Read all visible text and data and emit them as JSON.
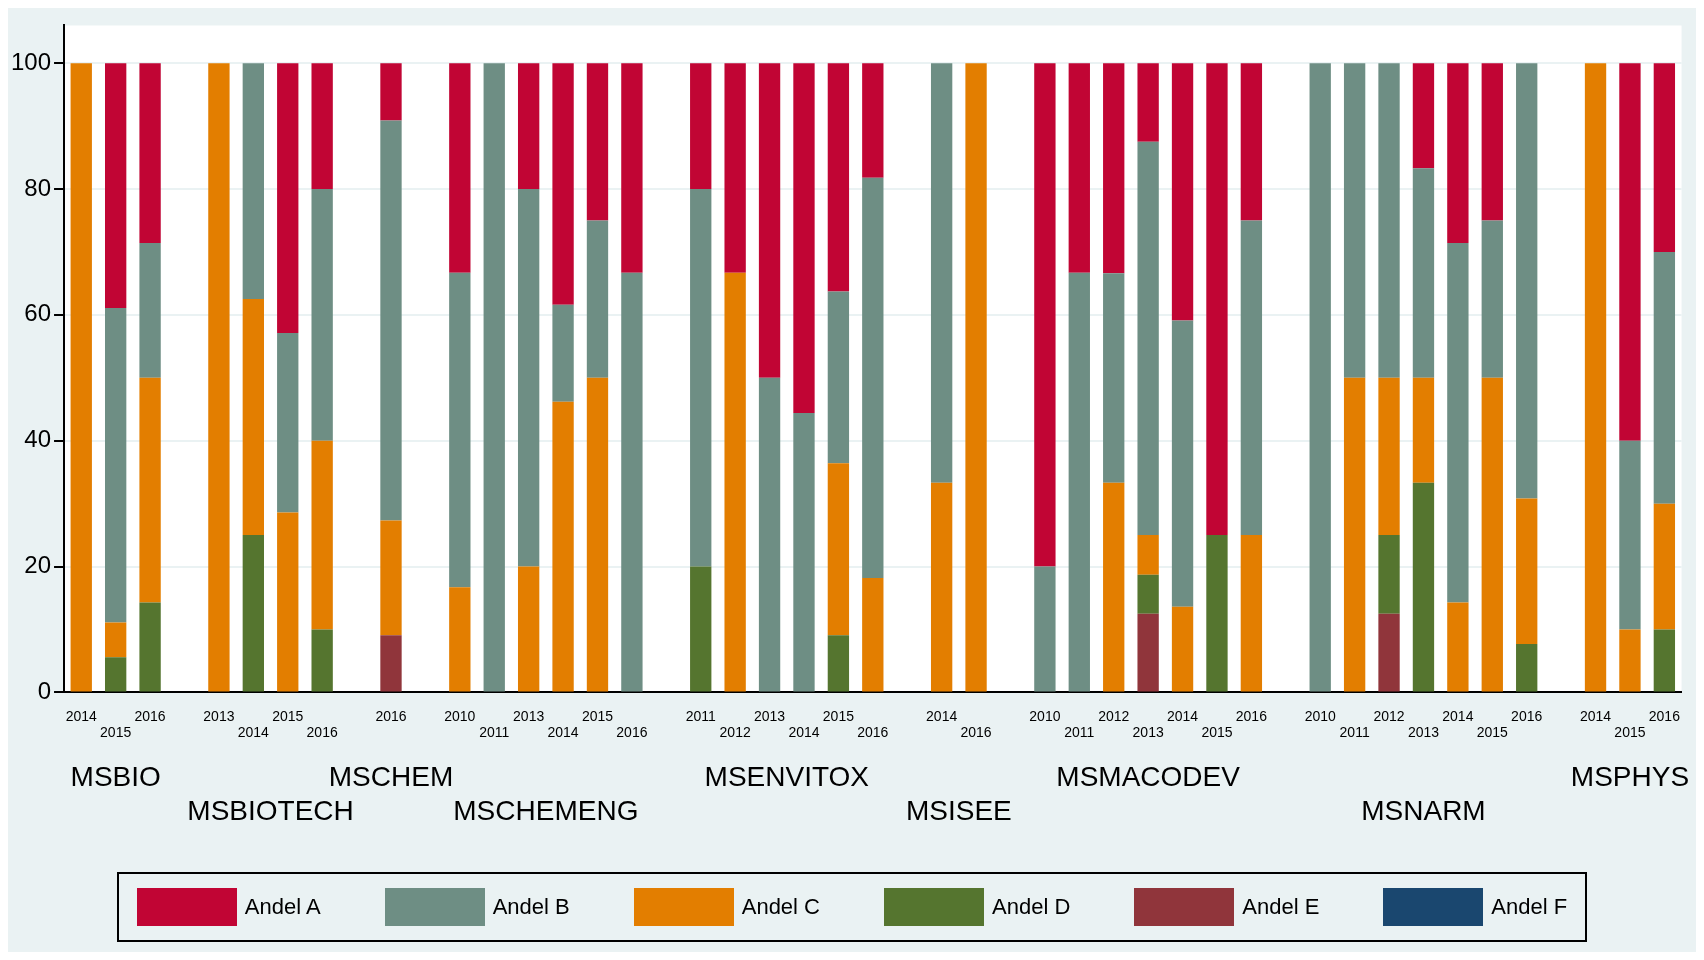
{
  "chart_data": {
    "type": "bar",
    "stacked": true,
    "grid": "y",
    "legend": "bottom",
    "categories": [
      "2014",
      "2015",
      "2016",
      null,
      "2013",
      "2014",
      "2015",
      "2016",
      null,
      "2016",
      null,
      "2010",
      "2011",
      "2013",
      "2014",
      "2015",
      "2016",
      null,
      "2011",
      "2012",
      "2013",
      "2014",
      "2015",
      "2016",
      null,
      "2014",
      "2016",
      null,
      "2010",
      "2011",
      "2012",
      "2013",
      "2014",
      "2015",
      "2016",
      null,
      "2010",
      "2011",
      "2012",
      "2013",
      "2014",
      "2015",
      "2016",
      null,
      "2014",
      "2015",
      "2016"
    ],
    "ylim": [
      0,
      106
    ],
    "yticks": [
      0,
      20,
      40,
      60,
      80,
      100
    ],
    "annotations": [
      "MSBIO",
      "MSBIOTECH",
      "MSCHEM",
      "MSCHEMENG",
      "MSENVITOX",
      "MSISEE",
      "MSMACODEV",
      "MSNARM",
      "MSPHYS"
    ],
    "series": [
      {
        "name": "Andel F",
        "color": "#1a476f",
        "values": [
          null,
          null,
          null,
          null,
          null,
          null,
          null,
          null,
          null,
          null,
          null,
          null,
          null,
          null,
          null,
          null,
          null,
          null,
          null,
          null,
          null,
          null,
          null,
          null,
          null,
          null,
          null,
          null,
          null,
          null,
          null,
          null,
          null,
          null,
          null,
          null,
          null,
          null,
          null,
          null,
          null,
          null,
          null,
          null,
          null,
          null,
          null
        ]
      },
      {
        "name": "Andel E",
        "color": "#90353b",
        "values": [
          null,
          null,
          null,
          null,
          null,
          null,
          null,
          null,
          null,
          9.1,
          null,
          null,
          null,
          null,
          null,
          null,
          null,
          null,
          null,
          null,
          null,
          null,
          null,
          null,
          null,
          null,
          null,
          null,
          null,
          null,
          null,
          12.5,
          null,
          null,
          null,
          null,
          null,
          null,
          12.5,
          null,
          null,
          null,
          null,
          null,
          null,
          null,
          null
        ]
      },
      {
        "name": "Andel D",
        "color": "#55752f",
        "values": [
          null,
          5.6,
          14.3,
          null,
          null,
          25,
          null,
          10,
          null,
          null,
          null,
          null,
          null,
          null,
          null,
          null,
          null,
          null,
          20,
          null,
          null,
          null,
          9.1,
          null,
          null,
          null,
          null,
          null,
          null,
          null,
          null,
          6.2,
          null,
          25,
          null,
          null,
          null,
          null,
          12.5,
          33.3,
          null,
          null,
          7.7,
          null,
          null,
          null,
          10
        ]
      },
      {
        "name": "Andel C",
        "color": "#e37e00",
        "values": [
          100,
          5.5,
          35.7,
          null,
          100,
          37.5,
          28.6,
          30,
          null,
          18.2,
          null,
          16.7,
          null,
          20,
          46.2,
          50,
          null,
          null,
          null,
          66.7,
          null,
          null,
          27.3,
          18.2,
          null,
          33.3,
          100,
          null,
          null,
          null,
          33.3,
          6.3,
          13.6,
          null,
          25,
          null,
          null,
          50,
          25,
          16.7,
          14.3,
          50,
          23.1,
          null,
          100,
          10,
          20
        ]
      },
      {
        "name": "Andel B",
        "color": "#6e8e84",
        "values": [
          null,
          50,
          21.4,
          null,
          null,
          37.5,
          28.5,
          40,
          null,
          63.6,
          null,
          50,
          100,
          60,
          15.4,
          25,
          66.7,
          null,
          60,
          null,
          50,
          44.4,
          27.3,
          63.6,
          null,
          66.7,
          null,
          null,
          20,
          66.7,
          33.3,
          62.5,
          45.5,
          null,
          50,
          null,
          100,
          50,
          50,
          33.3,
          57.1,
          25,
          69.2,
          null,
          null,
          30,
          40
        ]
      },
      {
        "name": "Andel A",
        "color": "#c10534",
        "values": [
          null,
          38.9,
          28.6,
          null,
          null,
          null,
          42.9,
          20,
          null,
          9.1,
          null,
          33.3,
          null,
          20,
          38.4,
          25,
          33.3,
          null,
          20,
          33.3,
          50,
          55.6,
          36.3,
          18.2,
          null,
          null,
          null,
          null,
          80,
          33.3,
          33.4,
          12.5,
          40.9,
          75,
          25,
          null,
          null,
          null,
          null,
          16.7,
          28.6,
          25,
          null,
          null,
          null,
          60,
          30
        ]
      }
    ]
  }
}
